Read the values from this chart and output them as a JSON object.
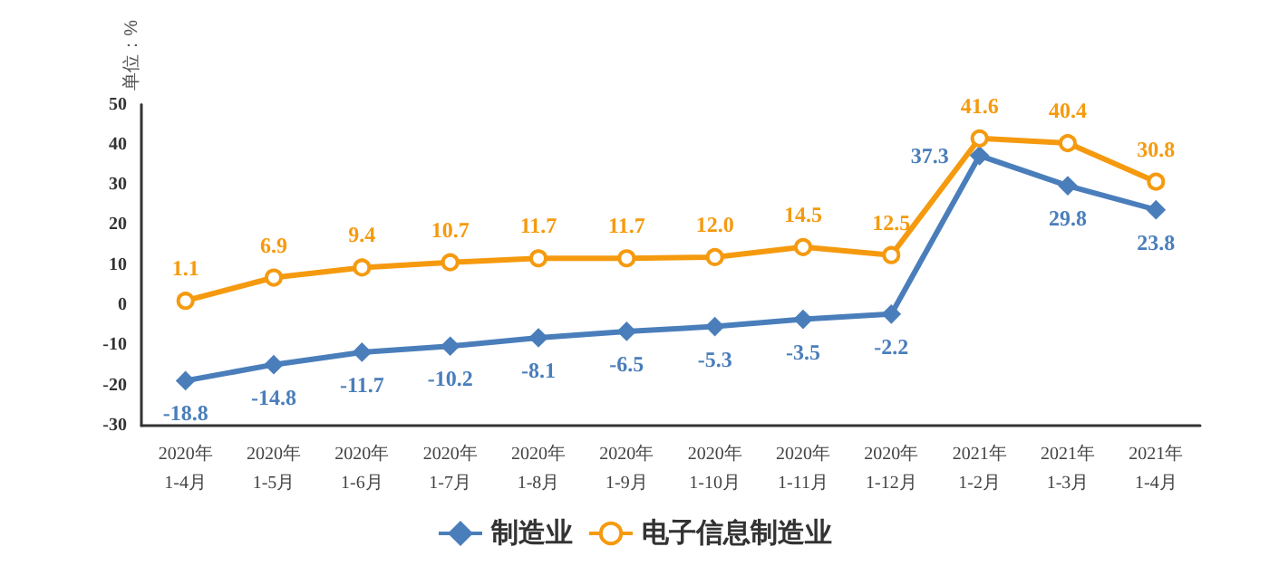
{
  "chart_data": {
    "type": "line",
    "ylabel": "单位：%",
    "categories": [
      "2020年\n1-4月",
      "2020年\n1-5月",
      "2020年\n1-6月",
      "2020年\n1-7月",
      "2020年\n1-8月",
      "2020年\n1-9月",
      "2020年\n1-10月",
      "2020年\n1-11月",
      "2020年\n1-12月",
      "2021年\n1-2月",
      "2021年\n1-3月",
      "2021年\n1-4月"
    ],
    "series": [
      {
        "name": "制造业",
        "color": "#4a7ebb",
        "marker": "diamond",
        "values": [
          -18.8,
          -14.8,
          -11.7,
          -10.2,
          -8.1,
          -6.5,
          -5.3,
          -3.5,
          -2.2,
          37.3,
          29.8,
          23.8
        ],
        "value_labels": [
          "-18.8",
          "-14.8",
          "-11.7",
          "-10.2",
          "-8.1",
          "-6.5",
          "-5.3",
          "-3.5",
          "-2.2",
          "37.3",
          "29.8",
          "23.8"
        ]
      },
      {
        "name": "电子信息制造业",
        "color": "#f59a0f",
        "marker": "circle",
        "values": [
          1.1,
          6.9,
          9.4,
          10.7,
          11.7,
          11.7,
          12.0,
          14.5,
          12.5,
          41.6,
          40.4,
          30.8
        ],
        "value_labels": [
          "1.1",
          "6.9",
          "9.4",
          "10.7",
          "11.7",
          "11.7",
          "12.0",
          "14.5",
          "12.5",
          "41.6",
          "40.4",
          "30.8"
        ]
      }
    ],
    "ylim": [
      -30,
      50
    ],
    "yticks": [
      -30,
      -20,
      -10,
      0,
      10,
      20,
      30,
      40,
      50
    ],
    "grid": false,
    "legend": "bottom"
  }
}
